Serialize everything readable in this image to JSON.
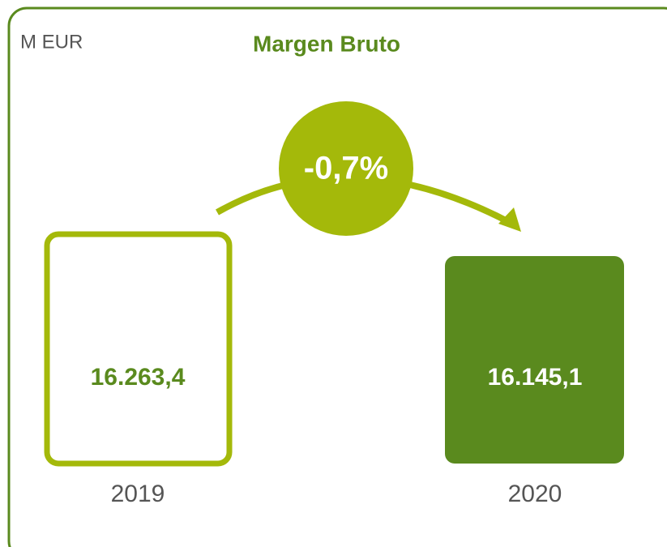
{
  "unit": "M EUR",
  "title": "Margen Bruto",
  "change": "-0,7%",
  "items": [
    {
      "label": "2019",
      "value": "16.263,4"
    },
    {
      "label": "2020",
      "value": "16.145,1"
    }
  ]
}
